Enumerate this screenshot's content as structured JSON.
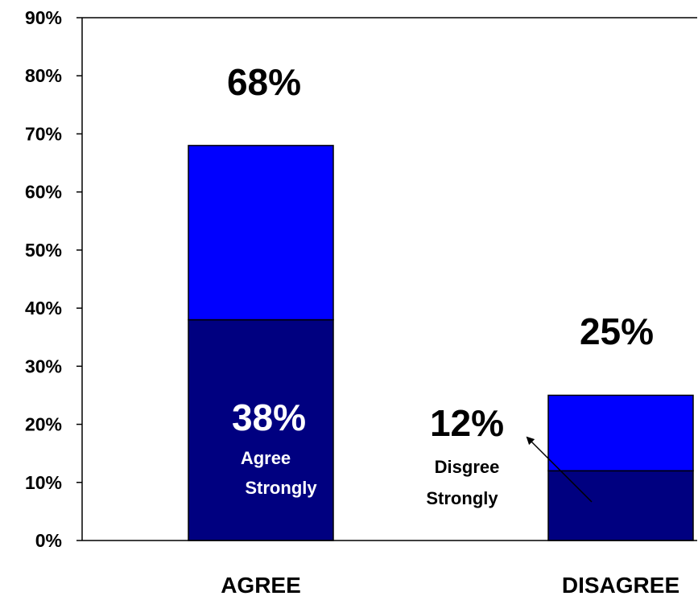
{
  "chart_data": {
    "type": "bar",
    "stacked": true,
    "categories": [
      "AGREE",
      "DISAGREE"
    ],
    "series": [
      {
        "values": [
          38,
          12
        ],
        "color": "#000080"
      },
      {
        "values": [
          30,
          13
        ],
        "color": "#0000ff"
      }
    ],
    "totals": [
      68,
      25
    ],
    "total_labels": [
      "68%",
      "25%"
    ],
    "inner_labels": [
      {
        "value": "38%",
        "text_lines": [
          "Agree",
          "Strongly"
        ]
      },
      {
        "value": "12%",
        "text_lines": [
          "Disgree",
          "Strongly"
        ]
      }
    ],
    "y_ticks": [
      "0%",
      "10%",
      "20%",
      "30%",
      "40%",
      "50%",
      "60%",
      "70%",
      "80%",
      "90%"
    ],
    "ylim": [
      0,
      90
    ],
    "grid": false,
    "legend": "none"
  }
}
